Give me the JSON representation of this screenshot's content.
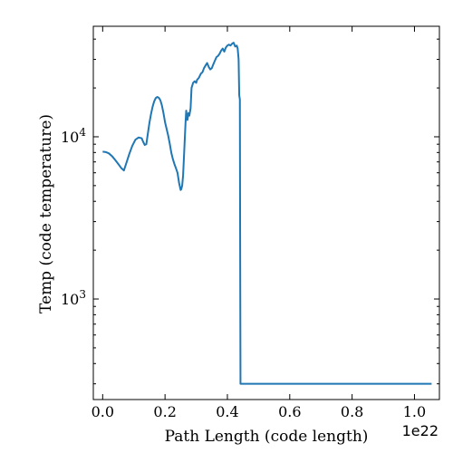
{
  "chart_data": {
    "type": "line",
    "xlabel": "Path Length  (code length)",
    "ylabel": "Temp  (code temperature)",
    "x_offset_label": "1e22",
    "xscale": "linear",
    "yscale": "log",
    "xlim": [
      -0.03,
      1.08
    ],
    "ylim": [
      240,
      48000
    ],
    "x_ticks": [
      0.0,
      0.2,
      0.4,
      0.6,
      0.8,
      1.0
    ],
    "x_tick_labels": [
      "0.0",
      "0.2",
      "0.4",
      "0.6",
      "0.8",
      "1.0"
    ],
    "y_ticks": [
      1000,
      10000
    ],
    "y_tick_labels": [
      {
        "base": "10",
        "exp": "3"
      },
      {
        "base": "10",
        "exp": "4"
      }
    ],
    "y_minor_ticks": [
      300,
      400,
      500,
      600,
      700,
      800,
      900,
      2000,
      3000,
      4000,
      5000,
      6000,
      7000,
      8000,
      9000,
      20000,
      30000,
      40000
    ],
    "grid": false,
    "legend": "none",
    "color": "#1f77b4",
    "series": [
      {
        "x": [
          0.0,
          0.01,
          0.02,
          0.03,
          0.04,
          0.05,
          0.06,
          0.068,
          0.075,
          0.085,
          0.095,
          0.105,
          0.115,
          0.125,
          0.13,
          0.135,
          0.14,
          0.145,
          0.15,
          0.155,
          0.16,
          0.165,
          0.17,
          0.175,
          0.18,
          0.185,
          0.19,
          0.195,
          0.2,
          0.205,
          0.21,
          0.215,
          0.22,
          0.225,
          0.23,
          0.235,
          0.24,
          0.245,
          0.25,
          0.252,
          0.255,
          0.258,
          0.262,
          0.266,
          0.268,
          0.27,
          0.272,
          0.275,
          0.278,
          0.282,
          0.285,
          0.29,
          0.295,
          0.3,
          0.303,
          0.308,
          0.315,
          0.32,
          0.325,
          0.33,
          0.335,
          0.34,
          0.345,
          0.35,
          0.355,
          0.36,
          0.365,
          0.37,
          0.375,
          0.38,
          0.385,
          0.39,
          0.395,
          0.4,
          0.405,
          0.41,
          0.415,
          0.42,
          0.425,
          0.43,
          0.433,
          0.436,
          0.438,
          0.44,
          0.441,
          0.442,
          0.443,
          0.45,
          0.5,
          0.6,
          0.7,
          0.8,
          0.9,
          1.0,
          1.055
        ],
        "y": [
          8100,
          8050,
          7900,
          7600,
          7200,
          6800,
          6400,
          6200,
          6800,
          7800,
          8800,
          9600,
          9900,
          9800,
          9300,
          8900,
          9000,
          10500,
          12200,
          13800,
          15300,
          16500,
          17300,
          17600,
          17400,
          16800,
          15600,
          14000,
          12300,
          11200,
          10200,
          9100,
          8000,
          7300,
          6800,
          6400,
          6000,
          5200,
          4700,
          4750,
          5000,
          5800,
          8500,
          12500,
          14500,
          13000,
          12700,
          14000,
          13500,
          15000,
          20000,
          21500,
          22000,
          21500,
          22500,
          23000,
          24500,
          25000,
          26500,
          27500,
          28500,
          27000,
          26000,
          26500,
          28000,
          29500,
          31000,
          31500,
          32500,
          34000,
          35000,
          33500,
          35500,
          36500,
          37000,
          36500,
          37500,
          38000,
          36000,
          36500,
          35000,
          30000,
          18000,
          17000,
          2000,
          300,
          300,
          300,
          300,
          300,
          300,
          300,
          300,
          300,
          300
        ]
      }
    ]
  }
}
